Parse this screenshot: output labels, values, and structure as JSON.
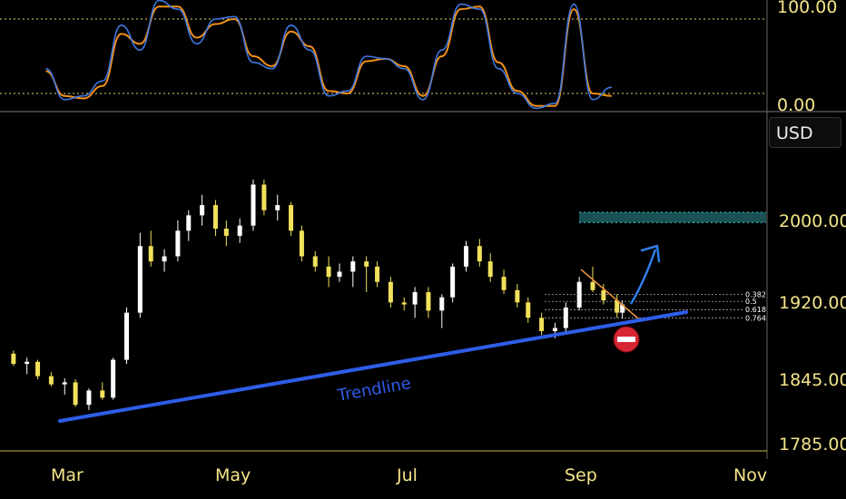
{
  "currency_button": "USD",
  "trendline_label": "Trendline",
  "colors": {
    "background": "#000000",
    "axis_text": "#f3e48a",
    "candle_up": "#ffffff",
    "candle_down": "#f1e15b",
    "trendline": "#2f5de8",
    "stoch_k": "#3f78e0",
    "stoch_d": "#f0901a",
    "target_zone": "#1f5f63",
    "no_entry": "#d72633"
  },
  "icons": {
    "no_entry": "no-entry-icon",
    "up_arrow": "up-arrow-icon"
  },
  "chart_data": [
    {
      "type": "line",
      "name": "stochastic-oscillator",
      "ylim": [
        0,
        100
      ],
      "y_ticks": [
        "100.00",
        "0.00"
      ],
      "levels": [
        80,
        20
      ],
      "series": [
        {
          "name": "%K",
          "x": [
            "2023-02-13",
            "2023-02-20",
            "2023-02-27",
            "2023-03-06",
            "2023-03-13",
            "2023-03-20",
            "2023-03-27",
            "2023-04-03",
            "2023-04-10",
            "2023-04-17",
            "2023-04-24",
            "2023-05-01",
            "2023-05-08",
            "2023-05-15",
            "2023-05-22",
            "2023-05-29",
            "2023-06-05",
            "2023-06-12",
            "2023-06-19",
            "2023-06-26",
            "2023-07-03",
            "2023-07-10",
            "2023-07-17",
            "2023-07-24",
            "2023-07-31",
            "2023-08-07",
            "2023-08-14",
            "2023-08-21",
            "2023-08-28",
            "2023-09-04",
            "2023-09-11"
          ],
          "values": [
            40,
            15,
            18,
            30,
            75,
            55,
            95,
            88,
            60,
            80,
            82,
            45,
            40,
            75,
            55,
            18,
            22,
            50,
            48,
            40,
            15,
            55,
            92,
            88,
            40,
            20,
            8,
            12,
            92,
            15,
            25
          ]
        },
        {
          "name": "%D",
          "x": [
            "2023-02-13",
            "2023-02-20",
            "2023-02-27",
            "2023-03-06",
            "2023-03-13",
            "2023-03-20",
            "2023-03-27",
            "2023-04-03",
            "2023-04-10",
            "2023-04-17",
            "2023-04-24",
            "2023-05-01",
            "2023-05-08",
            "2023-05-15",
            "2023-05-22",
            "2023-05-29",
            "2023-06-05",
            "2023-06-12",
            "2023-06-19",
            "2023-06-26",
            "2023-07-03",
            "2023-07-10",
            "2023-07-17",
            "2023-07-24",
            "2023-07-31",
            "2023-08-07",
            "2023-08-14",
            "2023-08-21",
            "2023-08-28",
            "2023-09-04",
            "2023-09-11"
          ],
          "values": [
            38,
            18,
            16,
            26,
            68,
            60,
            90,
            90,
            65,
            76,
            80,
            50,
            42,
            70,
            58,
            22,
            20,
            46,
            48,
            42,
            18,
            50,
            88,
            90,
            45,
            22,
            10,
            10,
            88,
            20,
            18
          ]
        }
      ]
    },
    {
      "type": "candlestick",
      "name": "gold-price",
      "x_ticks": [
        "Mar",
        "May",
        "Jul",
        "Sep",
        "Nov"
      ],
      "y_ticks": [
        "2000.00",
        "1920.00",
        "1845.00",
        "1785.00"
      ],
      "ylim": [
        1780,
        2060
      ],
      "candles": [
        [
          "2023-02-01",
          1870,
          1873,
          1858,
          1860
        ],
        [
          "2023-02-06",
          1860,
          1866,
          1850,
          1862
        ],
        [
          "2023-02-10",
          1862,
          1864,
          1845,
          1848
        ],
        [
          "2023-02-15",
          1848,
          1852,
          1838,
          1840
        ],
        [
          "2023-02-20",
          1840,
          1846,
          1830,
          1842
        ],
        [
          "2023-02-24",
          1842,
          1845,
          1818,
          1820
        ],
        [
          "2023-03-01",
          1820,
          1836,
          1815,
          1834
        ],
        [
          "2023-03-06",
          1834,
          1842,
          1825,
          1827
        ],
        [
          "2023-03-10",
          1827,
          1866,
          1825,
          1864
        ],
        [
          "2023-03-15",
          1864,
          1915,
          1860,
          1910
        ],
        [
          "2023-03-20",
          1910,
          1988,
          1905,
          1975
        ],
        [
          "2023-03-24",
          1975,
          1990,
          1955,
          1960
        ],
        [
          "2023-03-29",
          1960,
          1972,
          1950,
          1965
        ],
        [
          "2023-04-03",
          1965,
          2000,
          1960,
          1990
        ],
        [
          "2023-04-07",
          1990,
          2010,
          1980,
          2005
        ],
        [
          "2023-04-12",
          2005,
          2025,
          1995,
          2015
        ],
        [
          "2023-04-17",
          2015,
          2020,
          1985,
          1992
        ],
        [
          "2023-04-21",
          1992,
          2000,
          1975,
          1985
        ],
        [
          "2023-04-26",
          1985,
          2002,
          1978,
          1995
        ],
        [
          "2023-05-01",
          1995,
          2040,
          1990,
          2035
        ],
        [
          "2023-05-05",
          2035,
          2040,
          2005,
          2010
        ],
        [
          "2023-05-10",
          2010,
          2025,
          2000,
          2015
        ],
        [
          "2023-05-15",
          2015,
          2018,
          1985,
          1990
        ],
        [
          "2023-05-19",
          1990,
          1995,
          1960,
          1965
        ],
        [
          "2023-05-24",
          1965,
          1970,
          1950,
          1955
        ],
        [
          "2023-05-29",
          1955,
          1965,
          1935,
          1945
        ],
        [
          "2023-06-02",
          1945,
          1958,
          1940,
          1950
        ],
        [
          "2023-06-07",
          1950,
          1965,
          1935,
          1960
        ],
        [
          "2023-06-12",
          1960,
          1965,
          1930,
          1955
        ],
        [
          "2023-06-16",
          1955,
          1960,
          1935,
          1940
        ],
        [
          "2023-06-21",
          1940,
          1945,
          1915,
          1920
        ],
        [
          "2023-06-26",
          1920,
          1925,
          1912,
          1918
        ],
        [
          "2023-06-30",
          1918,
          1935,
          1905,
          1930
        ],
        [
          "2023-07-05",
          1930,
          1935,
          1905,
          1912
        ],
        [
          "2023-07-10",
          1912,
          1928,
          1895,
          1925
        ],
        [
          "2023-07-14",
          1925,
          1958,
          1920,
          1955
        ],
        [
          "2023-07-19",
          1955,
          1980,
          1950,
          1975
        ],
        [
          "2023-07-24",
          1975,
          1982,
          1955,
          1960
        ],
        [
          "2023-07-28",
          1960,
          1968,
          1940,
          1945
        ],
        [
          "2023-08-02",
          1945,
          1952,
          1928,
          1932
        ],
        [
          "2023-08-07",
          1932,
          1938,
          1915,
          1920
        ],
        [
          "2023-08-11",
          1920,
          1925,
          1900,
          1905
        ],
        [
          "2023-08-16",
          1905,
          1910,
          1888,
          1892
        ],
        [
          "2023-08-21",
          1892,
          1900,
          1885,
          1895
        ],
        [
          "2023-08-25",
          1895,
          1920,
          1890,
          1915
        ],
        [
          "2023-08-30",
          1915,
          1945,
          1912,
          1940
        ],
        [
          "2023-09-04",
          1940,
          1955,
          1930,
          1932
        ],
        [
          "2023-09-08",
          1932,
          1938,
          1918,
          1922
        ],
        [
          "2023-09-13",
          1922,
          1928,
          1905,
          1910
        ],
        [
          "2023-09-15",
          1910,
          1922,
          1904,
          1918
        ]
      ]
    }
  ],
  "fibonacci": {
    "levels": [
      {
        "label": "0.382",
        "price": 1928
      },
      {
        "label": "0.5",
        "price": 1921
      },
      {
        "label": "0.618",
        "price": 1913
      },
      {
        "label": "0.764",
        "price": 1905
      }
    ]
  },
  "target_zone": {
    "from": 1998,
    "to": 2008
  }
}
